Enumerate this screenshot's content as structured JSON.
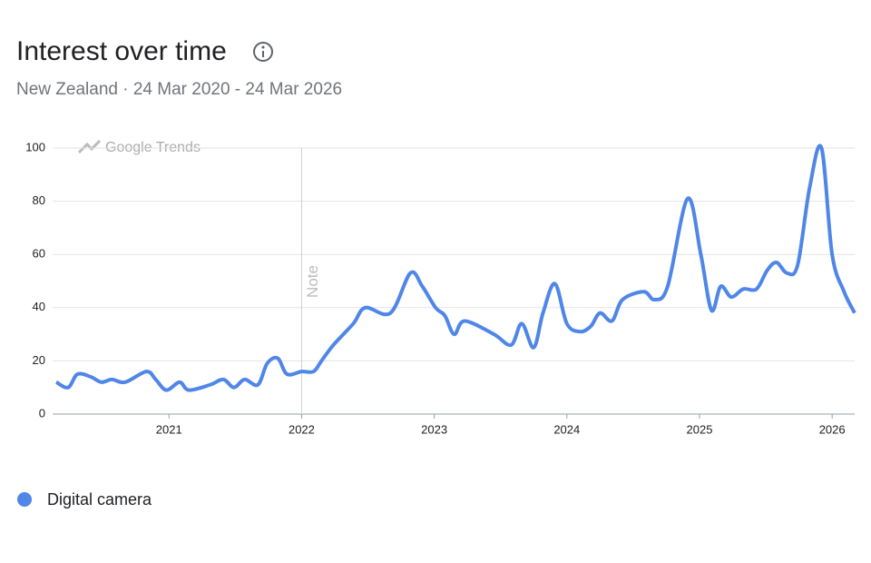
{
  "chart_data": {
    "type": "line",
    "title": "Interest over time",
    "subtitle": "New Zealand · 24 Mar 2020 - 24 Mar 2026",
    "watermark": "Google Trends",
    "x": [
      2020.15,
      2020.24,
      2020.31,
      2020.41,
      2020.49,
      2020.57,
      2020.67,
      2020.83,
      2020.9,
      2020.98,
      2021.08,
      2021.15,
      2021.31,
      2021.41,
      2021.49,
      2021.57,
      2021.67,
      2021.74,
      2021.82,
      2021.89,
      2022.0,
      2022.09,
      2022.15,
      2022.24,
      2022.39,
      2022.48,
      2022.67,
      2022.82,
      2022.91,
      2023.01,
      2023.08,
      2023.15,
      2023.23,
      2023.45,
      2023.58,
      2023.66,
      2023.75,
      2023.82,
      2023.91,
      2024.0,
      2024.1,
      2024.18,
      2024.25,
      2024.34,
      2024.42,
      2024.58,
      2024.66,
      2024.76,
      2024.91,
      2025.01,
      2025.09,
      2025.16,
      2025.24,
      2025.33,
      2025.43,
      2025.51,
      2025.58,
      2025.66,
      2025.74,
      2025.83,
      2025.92,
      2026.0,
      2026.09,
      2026.17
    ],
    "series": [
      {
        "name": "Digital camera",
        "color": "#4f86e8",
        "values": [
          12,
          10,
          15,
          14,
          12,
          13,
          12,
          16,
          13,
          9,
          12,
          9,
          11,
          13,
          10,
          13,
          11,
          19,
          21,
          15,
          16,
          16,
          20,
          26,
          34,
          40,
          38,
          53,
          48,
          40,
          37,
          30,
          35,
          30,
          26,
          34,
          25,
          38,
          49,
          34,
          31,
          33,
          38,
          35,
          43,
          46,
          43,
          48,
          81,
          60,
          39,
          48,
          44,
          47,
          47,
          54,
          57,
          53,
          56,
          85,
          100,
          60,
          46,
          38
        ]
      }
    ],
    "xlim": [
      2020.15,
      2026.17
    ],
    "xticks": [
      2021,
      2022,
      2023,
      2024,
      2025,
      2026
    ],
    "ylim": [
      0,
      100
    ],
    "yticks": [
      0,
      20,
      40,
      60,
      80,
      100
    ],
    "grid": true,
    "note": {
      "x": 2022,
      "label": "Note"
    }
  }
}
